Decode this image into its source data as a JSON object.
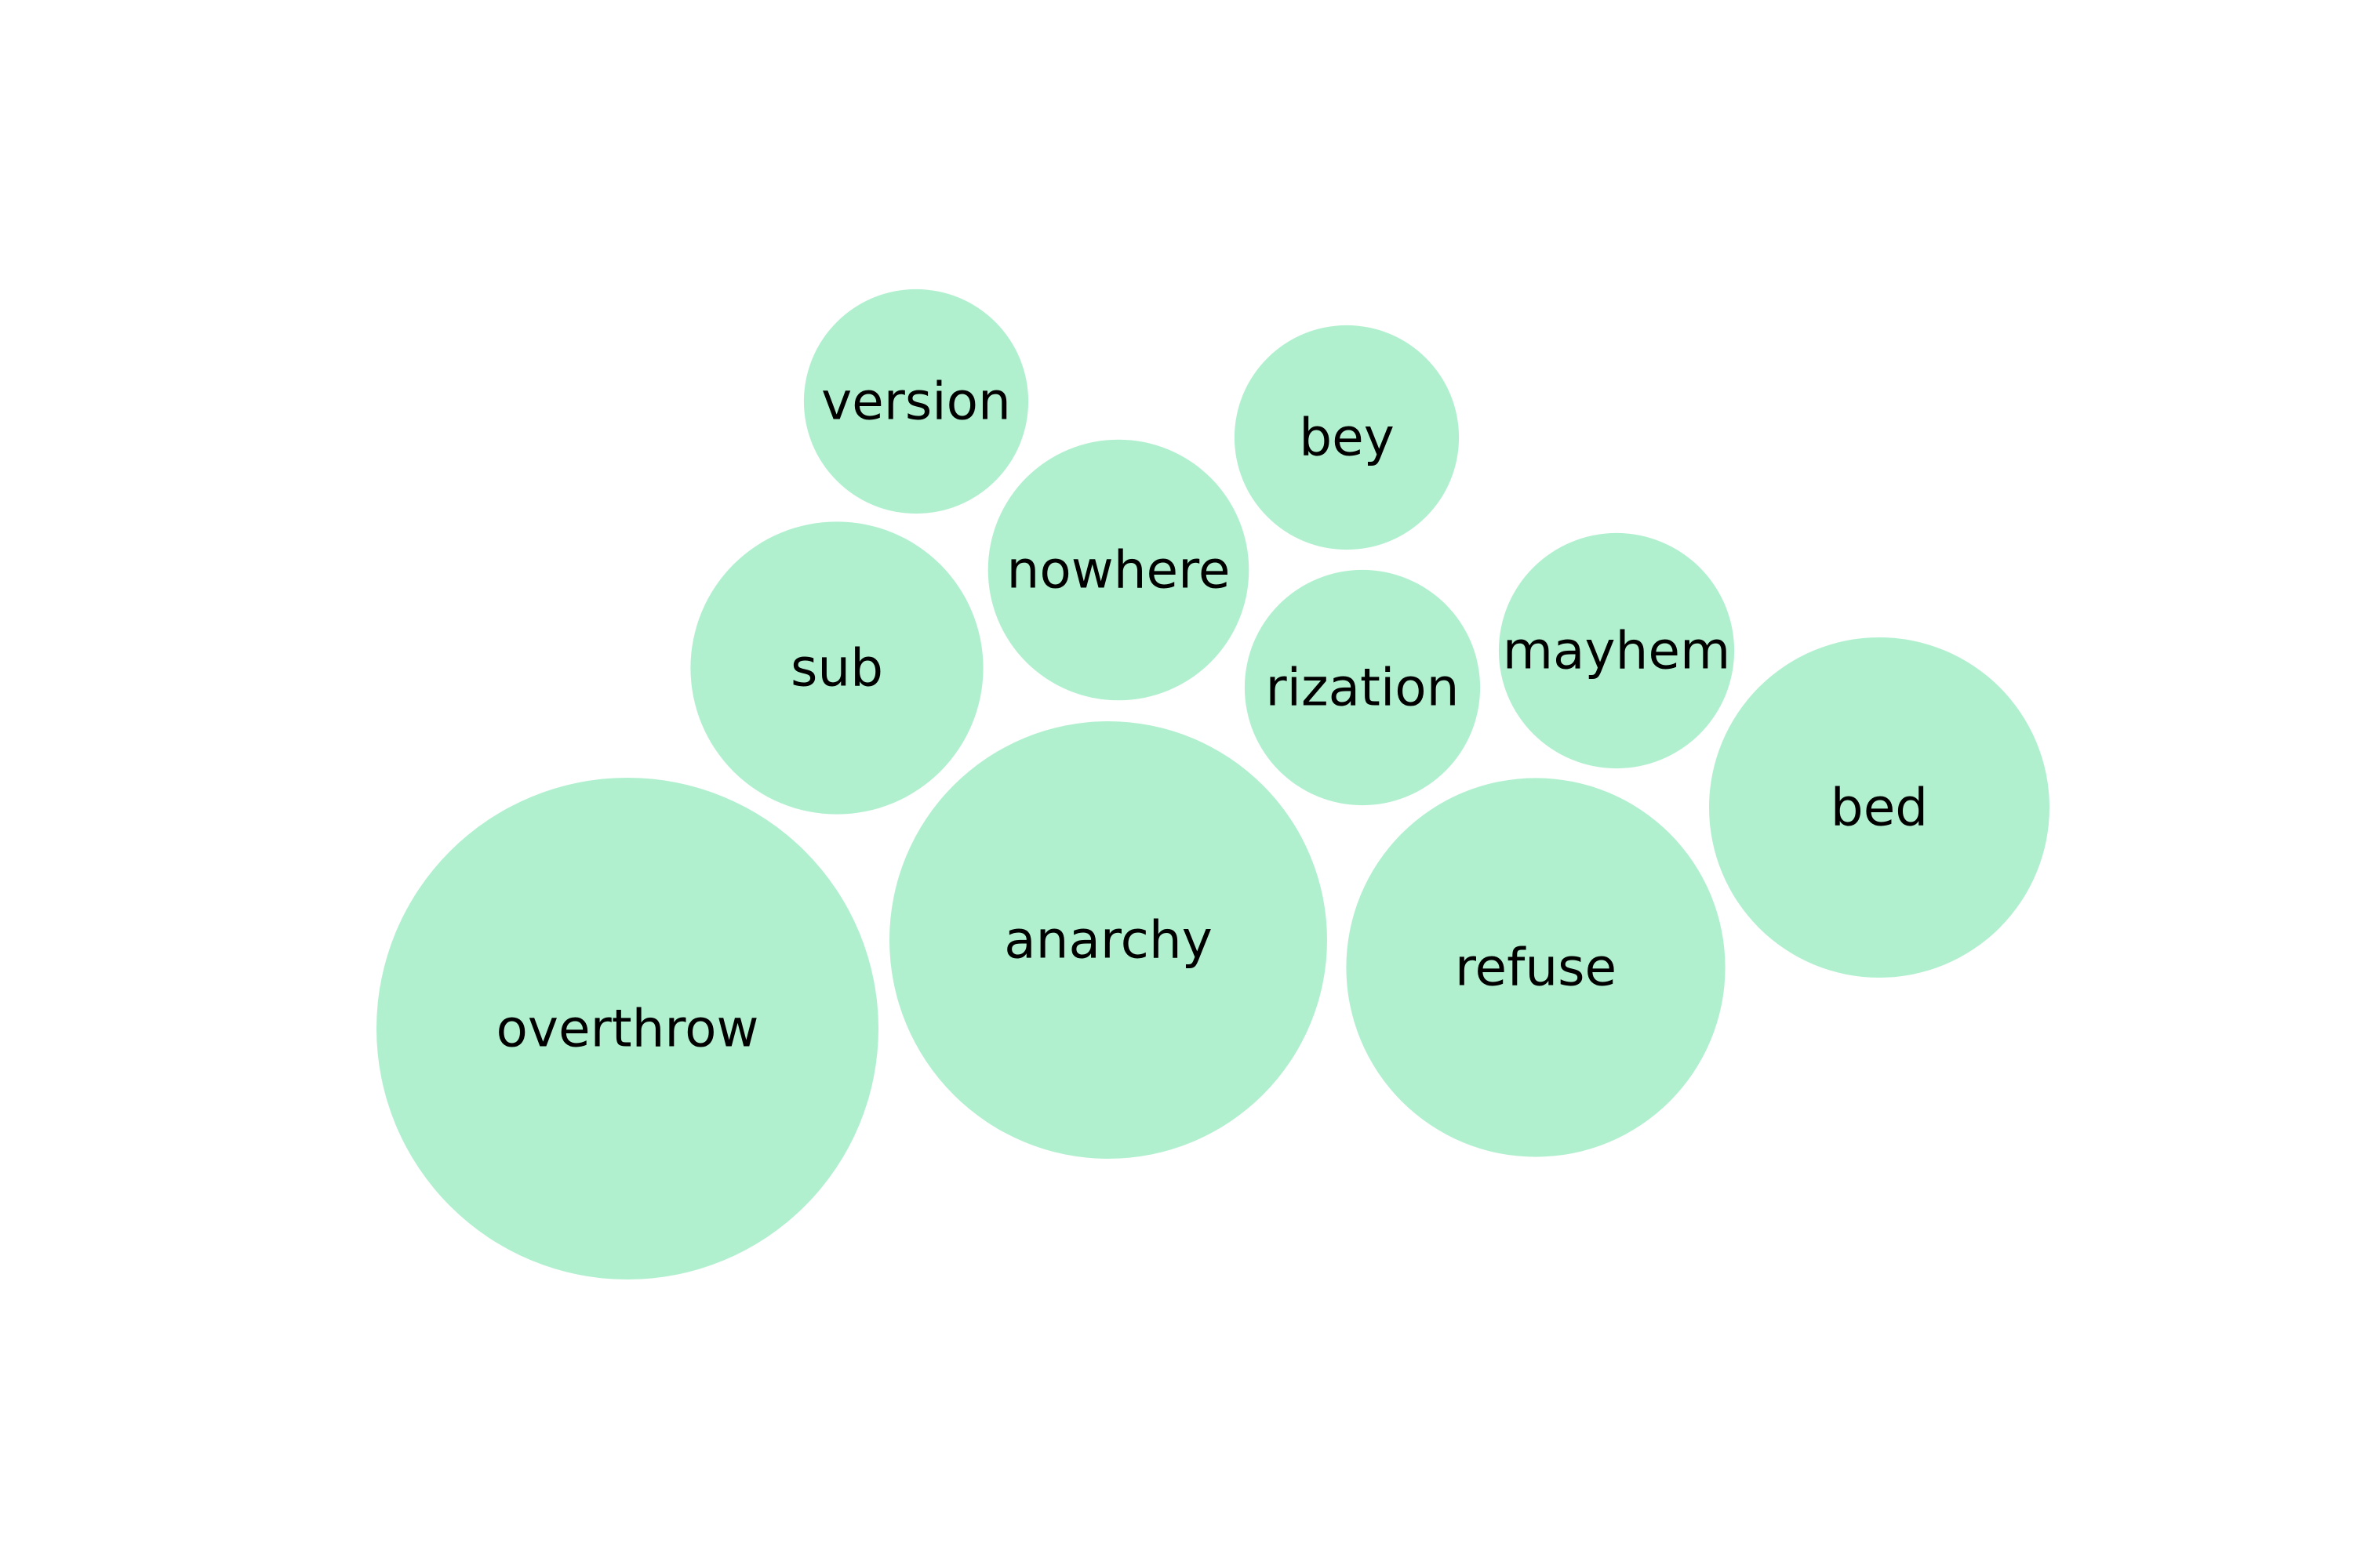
{
  "chart_data": {
    "type": "bubble",
    "title": "",
    "colors": {
      "bubble_fill": "#b1f0cf",
      "label_text": "#000000",
      "background": "#ffffff"
    },
    "bubbles": [
      {
        "label": "overthrow",
        "value": 100
      },
      {
        "label": "anarchy",
        "value": 76
      },
      {
        "label": "refuse",
        "value": 57
      },
      {
        "label": "bed",
        "value": 46
      },
      {
        "label": "sub",
        "value": 34
      },
      {
        "label": "nowhere",
        "value": 27
      },
      {
        "label": "rization",
        "value": 22
      },
      {
        "label": "mayhem",
        "value": 22
      },
      {
        "label": "version",
        "value": 20
      },
      {
        "label": "bey",
        "value": 20
      }
    ]
  }
}
